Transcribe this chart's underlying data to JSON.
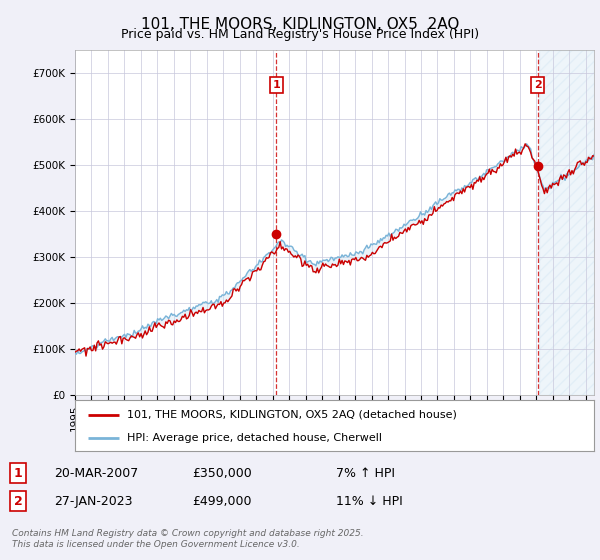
{
  "title": "101, THE MOORS, KIDLINGTON, OX5  2AQ",
  "subtitle": "Price paid vs. HM Land Registry's House Price Index (HPI)",
  "ylim": [
    0,
    750000
  ],
  "yticks": [
    0,
    100000,
    200000,
    300000,
    400000,
    500000,
    600000,
    700000
  ],
  "ytick_labels": [
    "£0",
    "£100K",
    "£200K",
    "£300K",
    "£400K",
    "£500K",
    "£600K",
    "£700K"
  ],
  "xlim_start": 1995.0,
  "xlim_end": 2026.5,
  "hpi_color": "#7ab4d8",
  "hpi_fill_color": "#c8dff0",
  "price_color": "#cc0000",
  "vline_color": "#cc0000",
  "sale1_x": 2007.22,
  "sale1_y": 350000,
  "sale2_x": 2023.08,
  "sale2_y": 499000,
  "legend_label1": "101, THE MOORS, KIDLINGTON, OX5 2AQ (detached house)",
  "legend_label2": "HPI: Average price, detached house, Cherwell",
  "info1_num": "1",
  "info1_date": "20-MAR-2007",
  "info1_price": "£350,000",
  "info1_hpi": "7% ↑ HPI",
  "info2_num": "2",
  "info2_date": "27-JAN-2023",
  "info2_price": "£499,000",
  "info2_hpi": "11% ↓ HPI",
  "footnote": "Contains HM Land Registry data © Crown copyright and database right 2025.\nThis data is licensed under the Open Government Licence v3.0.",
  "background_color": "#f0f0f8",
  "plot_bg_color": "#ffffff",
  "grid_color": "#c8c8dc",
  "title_fontsize": 11,
  "subtitle_fontsize": 9,
  "tick_fontsize": 7.5,
  "legend_fontsize": 8,
  "info_fontsize": 9
}
